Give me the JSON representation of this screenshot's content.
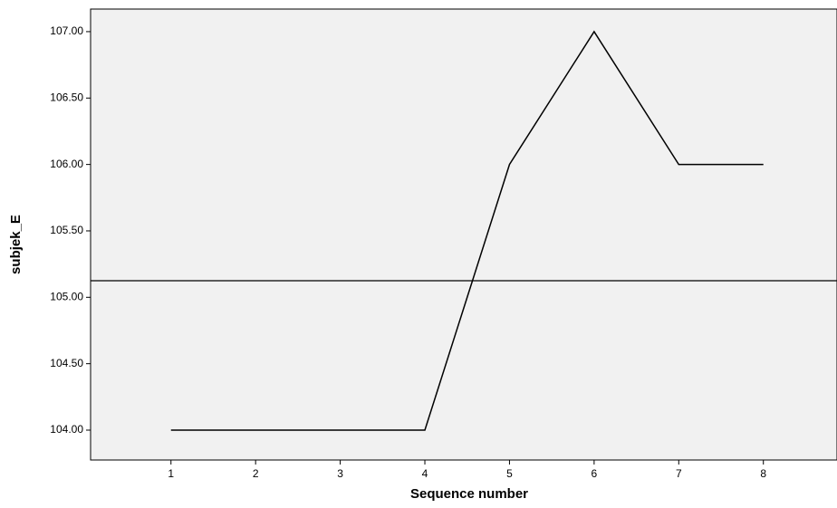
{
  "chart_data": {
    "type": "line",
    "x_label": "Sequence number",
    "y_label": "subjek_E",
    "x": [
      1,
      2,
      3,
      4,
      5,
      6,
      7,
      8
    ],
    "series": [
      {
        "color": "#000000",
        "values": [
          104,
          104,
          104,
          104,
          106,
          107,
          106,
          106
        ]
      }
    ],
    "reference_line": 105.125,
    "xlim": [
      0.05,
      8.87
    ],
    "xticks": [
      1,
      2,
      3,
      4,
      5,
      6,
      7,
      8
    ],
    "ylim": [
      103.775,
      107.17
    ],
    "yticks": [
      {
        "value": 104,
        "label": "104.00"
      },
      {
        "value": 104.5,
        "label": "104.50"
      },
      {
        "value": 105,
        "label": "105.00"
      },
      {
        "value": 105.5,
        "label": "105.50"
      },
      {
        "value": 106,
        "label": "106.00"
      },
      {
        "value": 106.5,
        "label": "106.50"
      },
      {
        "value": 107,
        "label": "107.00"
      }
    ]
  }
}
